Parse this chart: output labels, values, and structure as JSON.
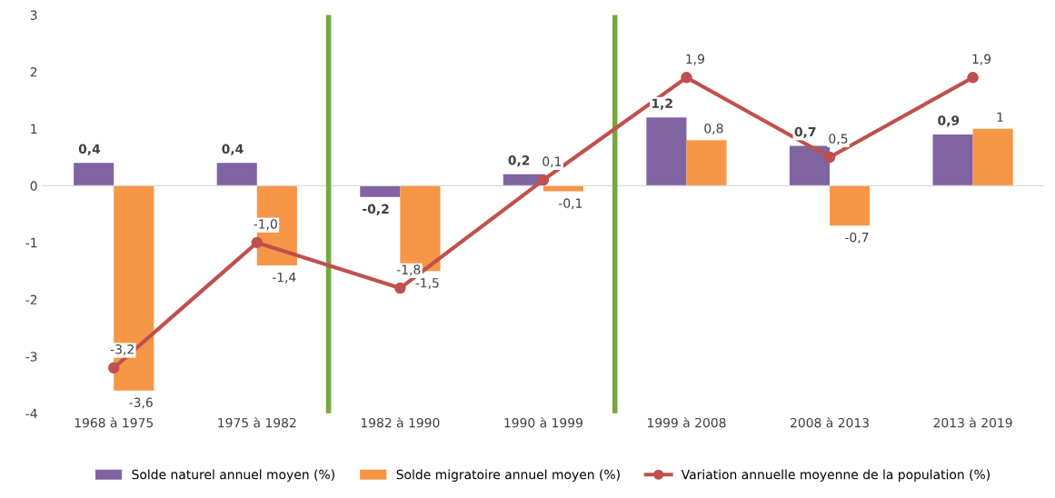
{
  "chart_data": {
    "type": "bar",
    "categories": [
      "1968 à 1975",
      "1975 à 1982",
      "1982 à 1990",
      "1990 à 1999",
      "1999 à 2008",
      "2008 à 2013",
      "2013 à 2019"
    ],
    "series": [
      {
        "name": "Solde naturel annuel moyen (%)",
        "color": "#8064a2",
        "values": [
          0.4,
          0.4,
          -0.2,
          0.2,
          1.2,
          0.7,
          0.9
        ],
        "value_labels": [
          "0,4",
          "0,4",
          "-0,2",
          "0,2",
          "1,2",
          "0,7",
          "0,9"
        ]
      },
      {
        "name": "Solde migratoire annuel moyen (%)",
        "color": "#f79646",
        "values": [
          -3.6,
          -1.4,
          -1.5,
          -0.1,
          0.8,
          -0.7,
          1
        ],
        "value_labels": [
          "-3,6",
          "-1,4",
          "-1,5",
          "-0,1",
          "0,8",
          "-0,7",
          "1"
        ]
      },
      {
        "name": "Variation annuelle moyenne de la population (%)",
        "type": "line",
        "color": "#c0504d",
        "marker": "circle",
        "values": [
          -3.2,
          -1.0,
          -1.8,
          0.1,
          1.9,
          0.5,
          1.9
        ],
        "value_labels": [
          "-3,2",
          "-1,0",
          "-1,8",
          "0,1",
          "1,9",
          "0,5",
          "1,9"
        ]
      }
    ],
    "ylim": [
      -4,
      3
    ],
    "yticks": [
      -4,
      -3,
      -2,
      -1,
      0,
      1,
      2,
      3
    ],
    "ref_lines": [
      {
        "axis": "y",
        "value": 0,
        "color": "#d9d9d9"
      }
    ],
    "grid": false,
    "legend": "bottom"
  }
}
